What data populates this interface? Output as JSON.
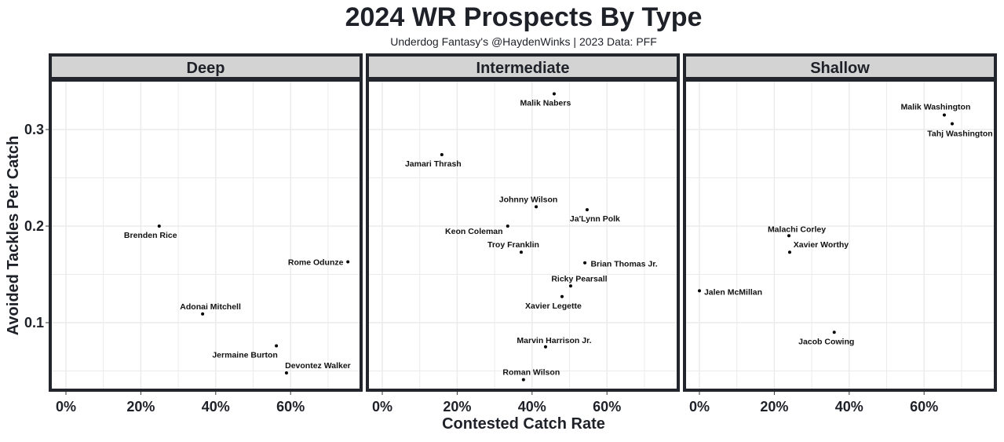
{
  "chart_data": {
    "type": "scatter",
    "title": "2024 WR Prospects By Type",
    "subtitle": "Underdog Fantasy's @HaydenWinks | 2023 Data: PFF",
    "xlabel": "Contested Catch Rate",
    "ylabel": "Avoided Tackles Per Catch",
    "xlim": [
      -3.8,
      78.4
    ],
    "ylim": [
      0.032,
      0.353
    ],
    "x_ticks": [
      "0%",
      "20%",
      "40%",
      "60%"
    ],
    "x_tick_values": [
      0,
      20,
      40,
      60
    ],
    "y_ticks": [
      "0.1",
      "0.2",
      "0.3"
    ],
    "y_tick_values": [
      0.1,
      0.2,
      0.3
    ],
    "grid": true,
    "panels": [
      {
        "name": "Deep",
        "points": [
          {
            "label": "Brenden Rice",
            "x": 24.9,
            "y": 0.2
          },
          {
            "label": "Rome Odunze",
            "x": 75.3,
            "y": 0.163
          },
          {
            "label": "Adonai Mitchell",
            "x": 36.5,
            "y": 0.109
          },
          {
            "label": "Jermaine Burton",
            "x": 56.2,
            "y": 0.076
          },
          {
            "label": "Devontez Walker",
            "x": 58.9,
            "y": 0.048
          }
        ]
      },
      {
        "name": "Intermediate",
        "points": [
          {
            "label": "Malik Nabers",
            "x": 45.9,
            "y": 0.337
          },
          {
            "label": "Jamari Thrash",
            "x": 15.9,
            "y": 0.274
          },
          {
            "label": "Johnny Wilson",
            "x": 41.1,
            "y": 0.22
          },
          {
            "label": "Ja'Lynn Polk",
            "x": 54.7,
            "y": 0.217
          },
          {
            "label": "Keon Coleman",
            "x": 33.5,
            "y": 0.2
          },
          {
            "label": "Troy Franklin",
            "x": 37.1,
            "y": 0.173
          },
          {
            "label": "Brian Thomas Jr.",
            "x": 54.1,
            "y": 0.162
          },
          {
            "label": "Ricky Pearsall",
            "x": 50.3,
            "y": 0.138
          },
          {
            "label": "Xavier Legette",
            "x": 48.0,
            "y": 0.127
          },
          {
            "label": "Marvin Harrison Jr.",
            "x": 43.6,
            "y": 0.075
          },
          {
            "label": "Roman Wilson",
            "x": 37.7,
            "y": 0.041
          }
        ]
      },
      {
        "name": "Shallow",
        "points": [
          {
            "label": "Malik Washington",
            "x": 65.4,
            "y": 0.315
          },
          {
            "label": "Tahj Washington",
            "x": 67.5,
            "y": 0.306
          },
          {
            "label": "Malachi Corley",
            "x": 23.9,
            "y": 0.19
          },
          {
            "label": "Xavier Worthy",
            "x": 24.1,
            "y": 0.173
          },
          {
            "label": "Jalen McMillan",
            "x": 0.0,
            "y": 0.133
          },
          {
            "label": "Jacob Cowing",
            "x": 36.0,
            "y": 0.09
          }
        ]
      }
    ]
  },
  "colors": {
    "text": "#1f2129",
    "frame": "#22252b",
    "strip": "#d3d3d3",
    "grid": "#ebebeb",
    "point": "#000000"
  }
}
